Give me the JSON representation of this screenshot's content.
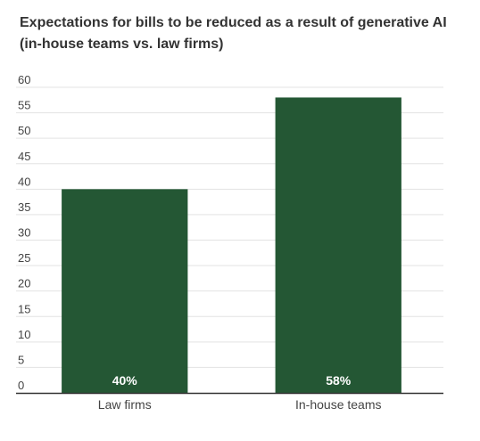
{
  "colors": {
    "bar": "#245734",
    "grid": "#e3e3e3",
    "axis": "#333333",
    "label_on_bar": "#ffffff"
  },
  "chart_data": {
    "type": "bar",
    "title": "Expectations for bills to be reduced as a result of generative AI",
    "subtitle": "(in-house teams vs. law firms)",
    "categories": [
      "Law firms",
      "In-house teams"
    ],
    "values": [
      40,
      58
    ],
    "data_labels": [
      "40%",
      "58%"
    ],
    "xlabel": "",
    "ylabel": "",
    "ylim": [
      0,
      60
    ],
    "yticks": [
      0,
      5,
      10,
      15,
      20,
      25,
      30,
      35,
      40,
      45,
      50,
      55,
      60
    ],
    "grid": true,
    "legend": "none"
  }
}
